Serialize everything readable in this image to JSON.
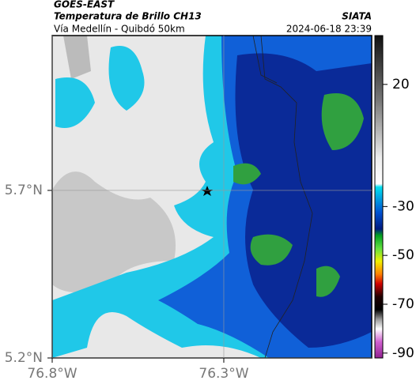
{
  "header": {
    "source": "GOES-EAST",
    "title": "Temperatura de Brillo CH13",
    "brand": "SIATA",
    "subtitle": "Vía Medellín - Quibdó 50km",
    "timestamp": "2024-06-18 23:39"
  },
  "map": {
    "lat_range": [
      5.2,
      6.162
    ],
    "lon_range": [
      -76.8,
      -75.869
    ],
    "lat_ticks": [
      {
        "value": 5.7,
        "label": "5.7°N"
      },
      {
        "value": 5.2,
        "label": "5.2°N"
      }
    ],
    "lon_ticks": [
      {
        "value": -76.8,
        "label": "76.8°W"
      },
      {
        "value": -76.3,
        "label": "76.3°W"
      }
    ]
  },
  "colorbar": {
    "range": [
      -92,
      40
    ],
    "ticks": [
      20,
      -30,
      -50,
      -70,
      -90
    ]
  }
}
